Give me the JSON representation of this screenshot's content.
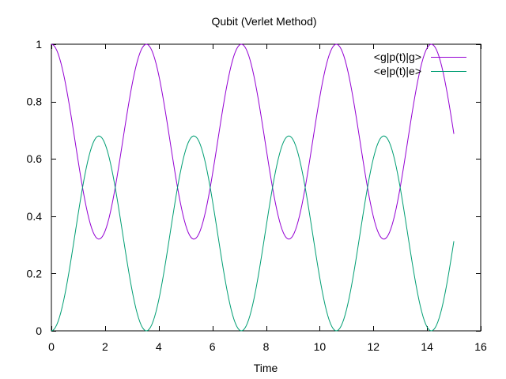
{
  "chart_data": {
    "type": "line",
    "title": "Qubit (Verlet Method)",
    "xlabel": "Time",
    "ylabel": "",
    "xlim": [
      0,
      16
    ],
    "ylim": [
      0,
      1
    ],
    "xticks": [
      "0",
      "2",
      "4",
      "6",
      "8",
      "10",
      "12",
      "14",
      "16"
    ],
    "yticks": [
      "0",
      "0.2",
      "0.4",
      "0.6",
      "0.8",
      "1"
    ],
    "grid": false,
    "legend_position": "top-right",
    "model": {
      "period": 3.54,
      "minimum": 0.32,
      "x_start": 0,
      "x_end": 15,
      "samples": 301
    },
    "series": [
      {
        "name": "<g|p(t)|g>",
        "color": "#9400d3",
        "extrema": [
          {
            "x": 0.0,
            "y": 1.0
          },
          {
            "x": 1.77,
            "y": 0.32
          },
          {
            "x": 3.54,
            "y": 1.0
          },
          {
            "x": 5.31,
            "y": 0.32
          },
          {
            "x": 7.08,
            "y": 1.0
          },
          {
            "x": 8.85,
            "y": 0.32
          },
          {
            "x": 10.62,
            "y": 1.0
          },
          {
            "x": 12.39,
            "y": 0.32
          },
          {
            "x": 14.16,
            "y": 1.0
          },
          {
            "x": 15.0,
            "y": 0.69
          }
        ]
      },
      {
        "name": "<e|p(t)|e>",
        "color": "#009e73",
        "extrema": [
          {
            "x": 0.0,
            "y": 0.0
          },
          {
            "x": 1.77,
            "y": 0.68
          },
          {
            "x": 3.54,
            "y": 0.0
          },
          {
            "x": 5.31,
            "y": 0.68
          },
          {
            "x": 7.08,
            "y": 0.0
          },
          {
            "x": 8.85,
            "y": 0.68
          },
          {
            "x": 10.62,
            "y": 0.0
          },
          {
            "x": 12.39,
            "y": 0.68
          },
          {
            "x": 14.16,
            "y": 0.0
          },
          {
            "x": 15.0,
            "y": 0.31
          }
        ]
      }
    ]
  }
}
